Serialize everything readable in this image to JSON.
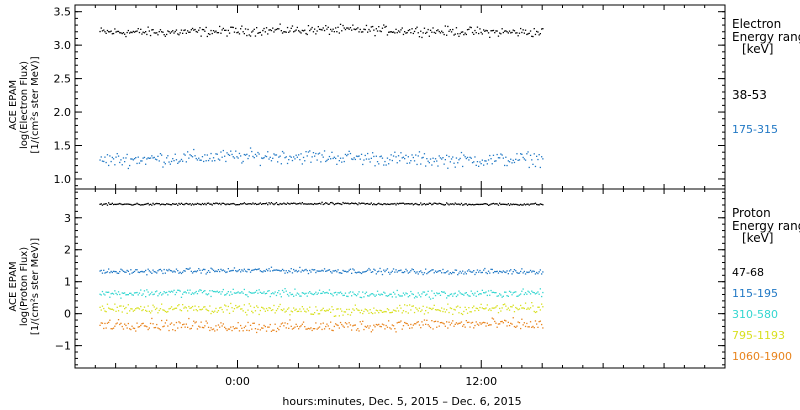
{
  "chart_data": [
    {
      "type": "scatter",
      "instrument_label": "ACE EPAM",
      "ylabel_line1": "log(Electron Flux)",
      "ylabel_line2": "[1/(cm²s ster MeV)]",
      "ylim": [
        0.85,
        3.6
      ],
      "yticks": [
        {
          "value": 1.0,
          "label": "1.0"
        },
        {
          "value": 1.5,
          "label": "1.5"
        },
        {
          "value": 2.0,
          "label": "2.0"
        },
        {
          "value": 2.5,
          "label": "2.5"
        },
        {
          "value": 3.0,
          "label": "3.0"
        },
        {
          "value": 3.5,
          "label": "3.5"
        }
      ],
      "legend_title_line1": "Electron",
      "legend_title_line2": "Energy ranges",
      "legend_unit": "[keV]",
      "series": [
        {
          "name": "38-53",
          "color": "#000000",
          "level": 3.22,
          "scatter": 0.06
        },
        {
          "name": "175-315",
          "color": "#1f77c4",
          "level": 1.32,
          "scatter": 0.09
        }
      ]
    },
    {
      "type": "scatter",
      "instrument_label": "ACE EPAM",
      "ylabel_line1": "log(Proton Flux)",
      "ylabel_line2": "[1/(cm²s ster MeV)]",
      "ylim": [
        -1.7,
        3.9
      ],
      "yticks": [
        {
          "value": -1,
          "label": "−1"
        },
        {
          "value": 0,
          "label": "0"
        },
        {
          "value": 1,
          "label": "1"
        },
        {
          "value": 2,
          "label": "2"
        },
        {
          "value": 3,
          "label": "3"
        }
      ],
      "legend_title_line1": "Proton",
      "legend_title_line2": "Energy ranges",
      "legend_unit": "[keV]",
      "series": [
        {
          "name": "47-68",
          "color": "#000000",
          "level": 3.45,
          "scatter": 0.03
        },
        {
          "name": "115-195",
          "color": "#1f77c4",
          "level": 1.35,
          "scatter": 0.07
        },
        {
          "name": "310-580",
          "color": "#33d6d0",
          "level": 0.65,
          "scatter": 0.1
        },
        {
          "name": "795-1193",
          "color": "#d8e020",
          "level": 0.15,
          "scatter": 0.13
        },
        {
          "name": "1060-1900",
          "color": "#e8831c",
          "level": -0.35,
          "scatter": 0.15
        }
      ]
    }
  ],
  "x_axis": {
    "range_hours": [
      -8,
      24
    ],
    "data_range_hours": [
      -6.8,
      15.0
    ],
    "ticks": [
      {
        "value": 0,
        "label": "0:00"
      },
      {
        "value": 12,
        "label": "12:00"
      }
    ],
    "label": "hours:minutes, Dec.  5, 2015 – Dec.  6, 2015"
  }
}
